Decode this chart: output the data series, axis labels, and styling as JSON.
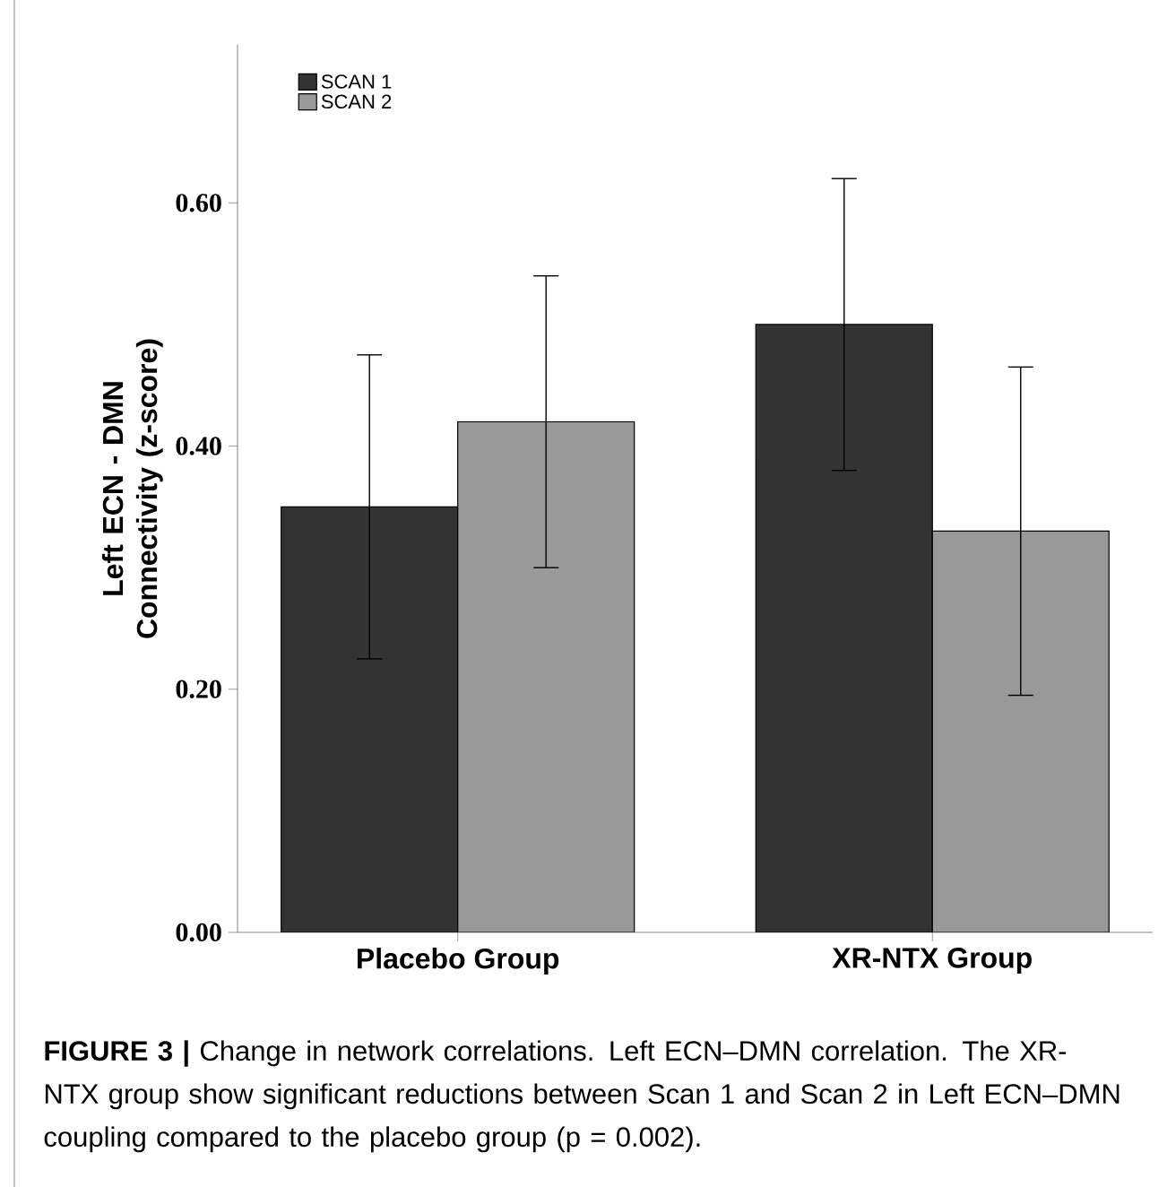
{
  "chart_data": {
    "type": "bar",
    "ylabel": "Left ECN - DMN Connectivity (z-score)",
    "categories": [
      "Placebo Group",
      "XR-NTX Group"
    ],
    "series": [
      {
        "name": "SCAN 1",
        "color": "#333333",
        "values": [
          0.35,
          0.5
        ],
        "errors": [
          0.125,
          0.12
        ]
      },
      {
        "name": "SCAN 2",
        "color": "#999999",
        "values": [
          0.42,
          0.33
        ],
        "errors": [
          0.12,
          0.135
        ]
      }
    ],
    "ylim": [
      0,
      0.73
    ],
    "yticks": [
      {
        "value": 0,
        "label": "0.00"
      },
      {
        "value": 0.2,
        "label": "0.20"
      },
      {
        "value": 0.4,
        "label": "0.40"
      },
      {
        "value": 0.6,
        "label": "0.60"
      }
    ],
    "legend": "top left",
    "annotations": [
      "**FIGURE 3 |** Change in network correlations. Left ECN–DMN correlation. The XR-NTX group show significant reductions between Scan 1 and Scan 2 in Left ECN–DMN coupling compared to the placebo group (p = 0.002)."
    ]
  }
}
